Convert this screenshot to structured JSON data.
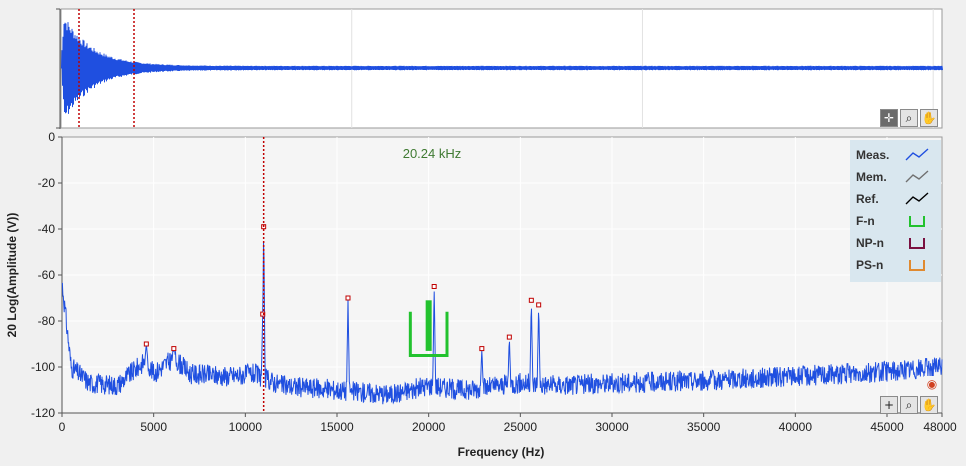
{
  "waveform": {
    "cursor_colors": {
      "cursor": "#c00000"
    },
    "trace_color": "#1f4fe0"
  },
  "toolbar_top": [
    {
      "name": "crosshair-tool",
      "icon": "crosshair-icon",
      "glyph": "✛"
    },
    {
      "name": "zoom-tool",
      "icon": "zoom-icon",
      "glyph": "⌕"
    },
    {
      "name": "pan-tool",
      "icon": "hand-icon",
      "glyph": "✋"
    }
  ],
  "toolbar_bottom": [
    {
      "name": "crosshair-tool",
      "icon": "crosshair-icon",
      "glyph": "+"
    },
    {
      "name": "zoom-tool",
      "icon": "zoom-icon",
      "glyph": "⌕"
    },
    {
      "name": "pan-tool",
      "icon": "hand-icon",
      "glyph": "✋"
    }
  ],
  "spectrum": {
    "cursor_label": "20.24 kHz",
    "legend": [
      {
        "label": "Meas.",
        "color": "#1f4fe0",
        "icon": "line"
      },
      {
        "label": "Mem.",
        "color": "#707070",
        "icon": "line"
      },
      {
        "label": "Ref.",
        "color": "#000000",
        "icon": "line"
      },
      {
        "label": "F-n",
        "color": "#22c22e",
        "icon": "bracket"
      },
      {
        "label": "NP-n",
        "color": "#7a1040",
        "icon": "bracket"
      },
      {
        "label": "PS-n",
        "color": "#e08a30",
        "icon": "bracket"
      }
    ]
  },
  "chart_data": [
    {
      "type": "line",
      "title": "",
      "note": "time-domain waveform overview (decaying oscillation)",
      "series": [
        {
          "values": []
        }
      ],
      "cursors": [
        "cursor 1",
        "cursor 2"
      ]
    },
    {
      "type": "line",
      "title": "",
      "xlabel": "Frequency (Hz)",
      "ylabel": "20 Log(Amplitude (V))",
      "xlim": [
        0,
        48000
      ],
      "ylim": [
        -120,
        0
      ],
      "x_ticks": [
        "0",
        "5000",
        "10000",
        "15000",
        "20000",
        "25000",
        "30000",
        "35000",
        "40000",
        "45000",
        "48000"
      ],
      "y_ticks": [
        "0",
        "-20",
        "-40",
        "-60",
        "-80",
        "-100",
        "-120"
      ],
      "grid": true,
      "legend_position": "top-right",
      "cursor_x": 11000,
      "peaks": [
        {
          "x": 4600,
          "y": -90
        },
        {
          "x": 6100,
          "y": -92
        },
        {
          "x": 10950,
          "y": -77
        },
        {
          "x": 11000,
          "y": -39
        },
        {
          "x": 15600,
          "y": -70
        },
        {
          "x": 20300,
          "y": -65
        },
        {
          "x": 22900,
          "y": -92
        },
        {
          "x": 24400,
          "y": -87
        },
        {
          "x": 25600,
          "y": -71
        },
        {
          "x": 26000,
          "y": -73
        }
      ],
      "f_n_marker": {
        "x_start": 19000,
        "x_end": 21000,
        "y_top": -76,
        "y_bottom": -95,
        "x_fill": 20000,
        "y_fill_top": -71,
        "y_fill_bottom": -93
      },
      "noise_floor": [
        {
          "x": 0,
          "y": -63
        },
        {
          "x": 500,
          "y": -100
        },
        {
          "x": 1500,
          "y": -107
        },
        {
          "x": 3000,
          "y": -108
        },
        {
          "x": 4600,
          "y": -97
        },
        {
          "x": 5000,
          "y": -103
        },
        {
          "x": 6100,
          "y": -96
        },
        {
          "x": 7000,
          "y": -103
        },
        {
          "x": 9000,
          "y": -104
        },
        {
          "x": 10500,
          "y": -103
        },
        {
          "x": 12000,
          "y": -108
        },
        {
          "x": 15000,
          "y": -110
        },
        {
          "x": 18000,
          "y": -112
        },
        {
          "x": 20000,
          "y": -108
        },
        {
          "x": 22000,
          "y": -110
        },
        {
          "x": 25000,
          "y": -107
        },
        {
          "x": 27000,
          "y": -108
        },
        {
          "x": 30000,
          "y": -107
        },
        {
          "x": 35000,
          "y": -106
        },
        {
          "x": 40000,
          "y": -104
        },
        {
          "x": 45000,
          "y": -102
        },
        {
          "x": 48000,
          "y": -100
        }
      ]
    }
  ]
}
